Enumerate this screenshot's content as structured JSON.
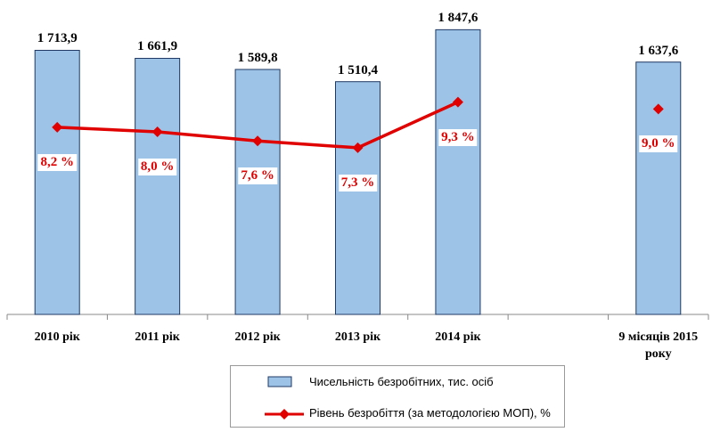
{
  "chart_data": {
    "type": "bar",
    "categories": [
      "2010 рік",
      "2011 рік",
      "2012 рік",
      "2013 рік",
      "2014 рік",
      null,
      "9 місяців 2015 року"
    ],
    "series": [
      {
        "name": "Чисельність безробітних, тис. осіб",
        "type": "bar",
        "color": "#9dc3e6",
        "values": [
          1713.9,
          1661.9,
          1589.8,
          1510.4,
          1847.6,
          null,
          1637.6
        ],
        "value_labels": [
          "1 713,9",
          "1 661,9",
          "1 589,8",
          "1 510,4",
          "1 847,6",
          null,
          "1 637,6"
        ]
      },
      {
        "name": "Рівень безробіття (за методологією МОП), %",
        "type": "line",
        "axis": "y2",
        "color": "#e00000",
        "values": [
          8.2,
          8.0,
          7.6,
          7.3,
          9.3,
          null,
          9.0
        ],
        "value_labels": [
          "8,2 %",
          "8,0 %",
          "7,6 %",
          "7,3 %",
          "9,3 %",
          null,
          "9,0 %"
        ]
      }
    ],
    "ylim": [
      0,
      2000
    ],
    "y2lim": [
      0,
      13.5
    ],
    "legend": "bottom"
  }
}
